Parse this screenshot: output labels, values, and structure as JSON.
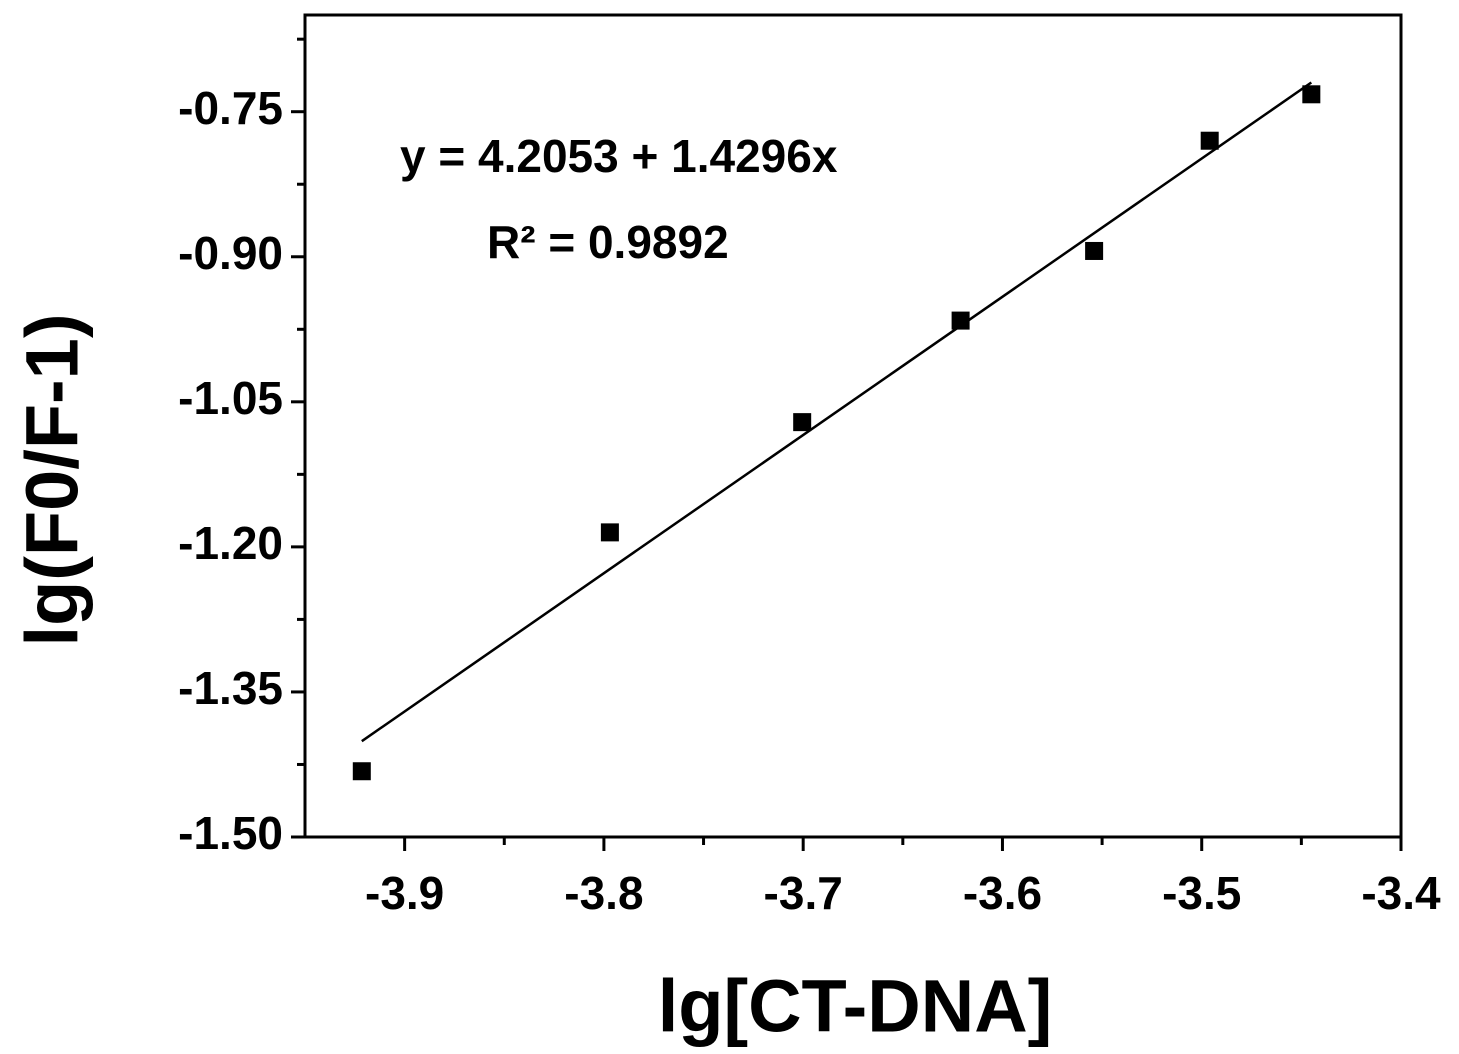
{
  "chart_data": {
    "type": "scatter",
    "xlabel": "lg[CT-DNA]",
    "ylabel": "lg(F0/F-1)",
    "annotations": [
      "y = 4.2053 + 1.4296x",
      "R² = 0.9892"
    ],
    "xlim": [
      -3.95,
      -3.4
    ],
    "ylim": [
      -1.5,
      -0.65
    ],
    "xticks": [
      -3.9,
      -3.8,
      -3.7,
      -3.6,
      -3.5,
      -3.4
    ],
    "xminorticks": [
      -3.85,
      -3.75,
      -3.65,
      -3.55,
      -3.45
    ],
    "yticks": [
      {
        "value": -1.5,
        "label": "-1.50"
      },
      -1.35,
      {
        "value": -1.2,
        "label": "-1.20"
      },
      -1.05,
      {
        "value": -0.9,
        "label": "-0.90"
      },
      -0.75
    ],
    "yminorticks": [
      -1.425,
      -1.275,
      -1.125,
      -0.975,
      -0.825,
      -0.675
    ],
    "series": [
      {
        "x": [
          -3.9215,
          -3.797,
          -3.7005,
          -3.621,
          -3.554,
          -3.496,
          -3.445
        ],
        "values": [
          -1.432,
          -1.185,
          -1.071,
          -0.966,
          -0.894,
          -0.78,
          -0.732
        ],
        "color": "#000000"
      }
    ],
    "fit": {
      "x": [
        -3.9215,
        -3.445
      ],
      "values": [
        -1.4009,
        -0.7198
      ],
      "color": "#000000"
    }
  }
}
